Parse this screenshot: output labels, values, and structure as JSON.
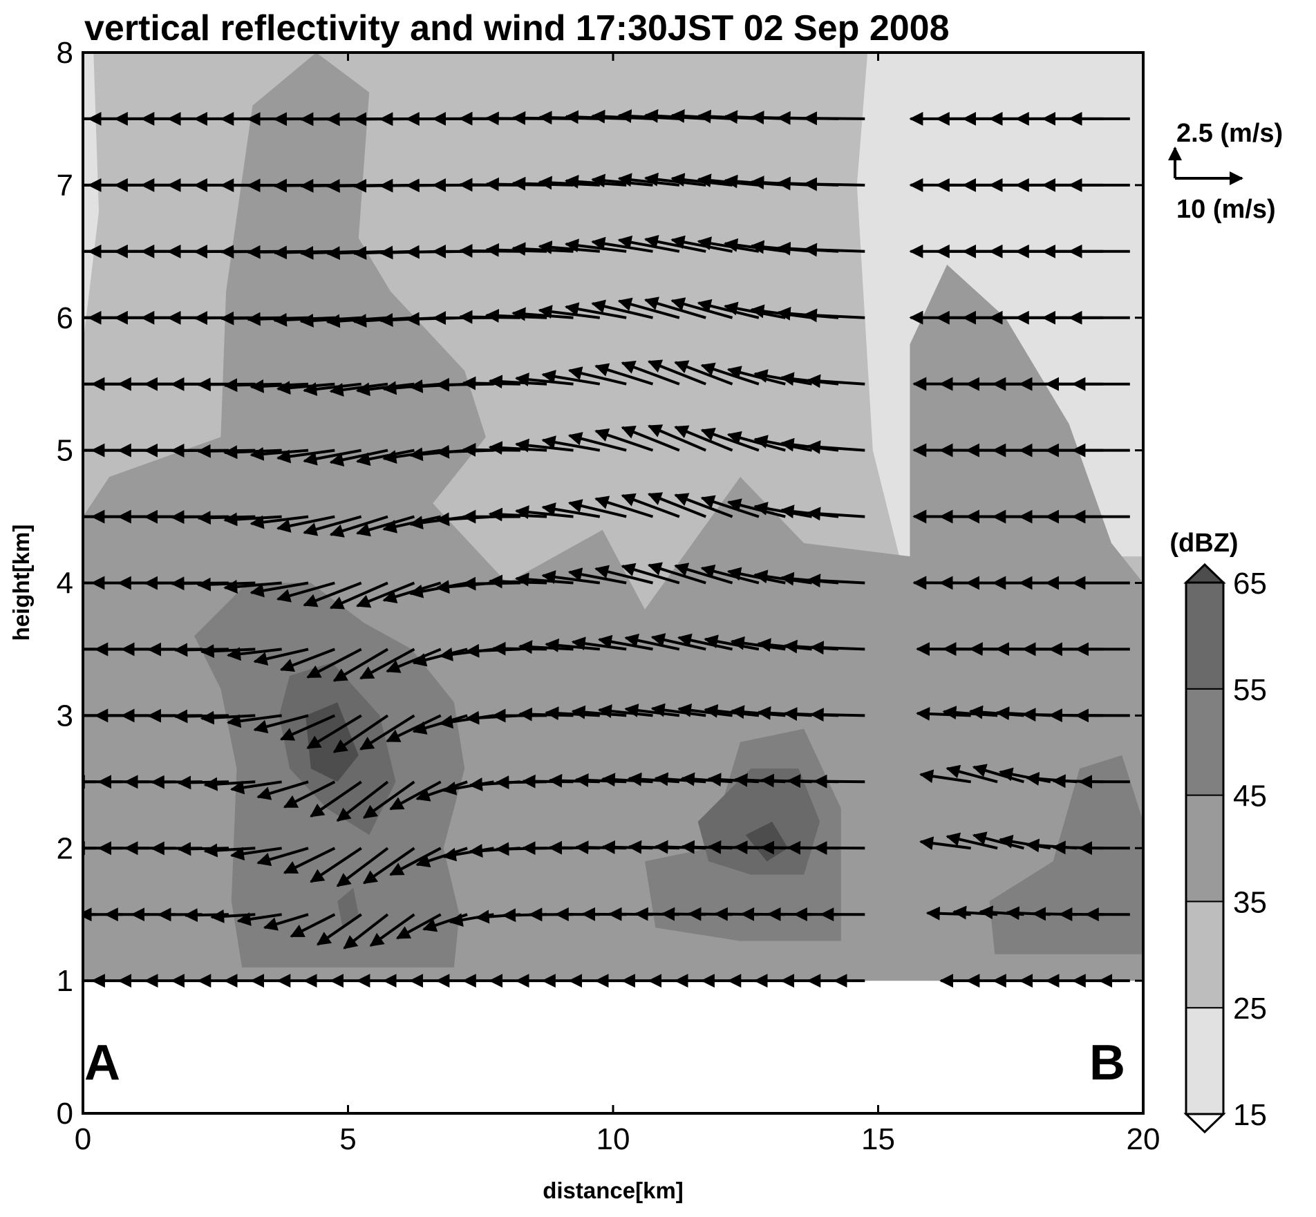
{
  "chart_data": {
    "type": "heatmap",
    "title": "vertical reflectivity and wind   17:30JST 02 Sep 2008",
    "xlabel": "distance[km]",
    "ylabel": "height[km]",
    "xlim": [
      0,
      20
    ],
    "ylim": [
      0,
      8
    ],
    "x_ticks": [
      "0",
      "5",
      "10",
      "15",
      "20"
    ],
    "y_ticks": [
      "0",
      "1",
      "2",
      "3",
      "4",
      "5",
      "6",
      "7",
      "8"
    ],
    "section_start_label": "A",
    "section_end_label": "B",
    "data_bottom_km": 1,
    "colorbar": {
      "title": "(dBZ)",
      "levels": [
        15,
        25,
        35,
        45,
        55,
        65
      ],
      "tick_labels": [
        "15",
        "25",
        "35",
        "45",
        "55",
        "65"
      ],
      "colors": [
        "#e1e1e1",
        "#bdbdbd",
        "#9a9a9a",
        "#808080",
        "#6a6a6a",
        "#4d4d4d"
      ]
    },
    "reference_vectors": {
      "vertical_label": "2.5 (m/s)",
      "horizontal_label": "10 (m/s)"
    },
    "reflectivity_regions": [
      {
        "level_dbz": 15,
        "points": [
          [
            0,
            8
          ],
          [
            20,
            8
          ],
          [
            20,
            1
          ],
          [
            0,
            1
          ]
        ]
      },
      {
        "level_dbz": 25,
        "points": [
          [
            0.2,
            8
          ],
          [
            14.8,
            8
          ],
          [
            14.6,
            7
          ],
          [
            14.9,
            5
          ],
          [
            15.4,
            4.2
          ],
          [
            20,
            4.2
          ],
          [
            20,
            1
          ],
          [
            0,
            1
          ],
          [
            0,
            5.8
          ],
          [
            0.3,
            6.8
          ]
        ]
      },
      {
        "level_dbz": 25,
        "points": [
          [
            9.6,
            7.9
          ],
          [
            14.2,
            7.9
          ],
          [
            14.4,
            7.3
          ],
          [
            12.5,
            6.2
          ],
          [
            10.5,
            6.8
          ]
        ]
      },
      {
        "level_dbz": 35,
        "points": [
          [
            0,
            4.5
          ],
          [
            0.5,
            4.8
          ],
          [
            2.6,
            5.1
          ],
          [
            2.7,
            6.2
          ],
          [
            3.2,
            7.6
          ],
          [
            4.4,
            8
          ],
          [
            5.4,
            7.7
          ],
          [
            5.2,
            6.6
          ],
          [
            5.8,
            6.2
          ],
          [
            7.2,
            5.6
          ],
          [
            7.6,
            5.1
          ],
          [
            6.6,
            4.6
          ],
          [
            8.0,
            4.0
          ],
          [
            9.8,
            4.4
          ],
          [
            10.6,
            3.8
          ],
          [
            12.4,
            4.8
          ],
          [
            13.6,
            4.3
          ],
          [
            15.6,
            4.2
          ],
          [
            15.6,
            5.8
          ],
          [
            16.3,
            6.4
          ],
          [
            17.4,
            6.0
          ],
          [
            18.6,
            5.2
          ],
          [
            19.4,
            4.3
          ],
          [
            20,
            4.0
          ],
          [
            20,
            1
          ],
          [
            0,
            1
          ]
        ]
      },
      {
        "level_dbz": 45,
        "points": [
          [
            2.1,
            3.6
          ],
          [
            3.1,
            4.0
          ],
          [
            4.3,
            4.0
          ],
          [
            5.3,
            3.7
          ],
          [
            6.2,
            3.5
          ],
          [
            7.0,
            3.1
          ],
          [
            7.2,
            2.6
          ],
          [
            6.8,
            2.0
          ],
          [
            7.1,
            1.5
          ],
          [
            7.0,
            1.1
          ],
          [
            3.0,
            1.1
          ],
          [
            2.8,
            1.6
          ],
          [
            2.9,
            2.6
          ],
          [
            2.6,
            3.2
          ]
        ]
      },
      {
        "level_dbz": 45,
        "points": [
          [
            10.6,
            1.9
          ],
          [
            11.8,
            2.0
          ],
          [
            12.4,
            2.8
          ],
          [
            13.6,
            2.9
          ],
          [
            14.3,
            2.3
          ],
          [
            14.3,
            1.3
          ],
          [
            12.4,
            1.3
          ],
          [
            10.8,
            1.4
          ]
        ]
      },
      {
        "level_dbz": 45,
        "points": [
          [
            17.1,
            1.6
          ],
          [
            18.3,
            1.9
          ],
          [
            18.8,
            2.6
          ],
          [
            19.6,
            2.7
          ],
          [
            20,
            2.2
          ],
          [
            20,
            1.2
          ],
          [
            17.2,
            1.2
          ]
        ]
      },
      {
        "level_dbz": 55,
        "points": [
          [
            3.9,
            3.3
          ],
          [
            4.7,
            3.4
          ],
          [
            5.6,
            3.0
          ],
          [
            5.9,
            2.5
          ],
          [
            5.4,
            2.1
          ],
          [
            4.6,
            2.3
          ],
          [
            3.9,
            2.6
          ],
          [
            3.7,
            3.0
          ]
        ]
      },
      {
        "level_dbz": 55,
        "points": [
          [
            11.6,
            2.2
          ],
          [
            12.6,
            2.6
          ],
          [
            13.5,
            2.6
          ],
          [
            13.9,
            2.2
          ],
          [
            13.6,
            1.8
          ],
          [
            12.6,
            1.8
          ],
          [
            11.8,
            1.9
          ]
        ]
      },
      {
        "level_dbz": 55,
        "points": [
          [
            4.8,
            1.6
          ],
          [
            5.1,
            1.7
          ],
          [
            5.2,
            1.5
          ],
          [
            4.9,
            1.4
          ]
        ]
      },
      {
        "level_dbz": 65,
        "points": [
          [
            4.2,
            3.0
          ],
          [
            4.8,
            3.1
          ],
          [
            5.2,
            2.7
          ],
          [
            4.8,
            2.5
          ],
          [
            4.3,
            2.6
          ]
        ]
      },
      {
        "level_dbz": 65,
        "points": [
          [
            12.5,
            2.1
          ],
          [
            13.0,
            2.2
          ],
          [
            13.3,
            2.0
          ],
          [
            12.9,
            1.9
          ]
        ]
      }
    ],
    "wind_field": {
      "description": "storm-relative wind vectors along section A-B",
      "x_km": [
        0.25,
        0.75,
        1.25,
        1.75,
        2.25,
        2.75,
        3.25,
        3.75,
        4.25,
        4.75,
        5.25,
        5.75,
        6.25,
        6.75,
        7.25,
        7.75,
        8.25,
        8.75,
        9.25,
        9.75,
        10.25,
        10.75,
        11.25,
        11.75,
        12.25,
        12.75,
        13.25,
        13.75,
        14.25,
        14.75,
        16.75,
        17.25,
        17.75,
        18.25,
        18.75,
        19.25,
        19.75
      ],
      "z_km": [
        1.0,
        1.5,
        2.0,
        2.5,
        3.0,
        3.5,
        4.0,
        4.5,
        5.0,
        5.5,
        6.0,
        6.5,
        7.0,
        7.5
      ],
      "gap_x_km": [
        15.0,
        16.5
      ],
      "u_profile_ms": [
        {
          "z": 1.0,
          "u": -4.5
        },
        {
          "z": 1.5,
          "u": -6.5
        },
        {
          "z": 2.0,
          "u": -7.5
        },
        {
          "z": 2.5,
          "u": -7.5
        },
        {
          "z": 3.0,
          "u": -8.0
        },
        {
          "z": 3.5,
          "u": -8.0
        },
        {
          "z": 4.0,
          "u": -8.5
        },
        {
          "z": 4.5,
          "u": -8.5
        },
        {
          "z": 5.0,
          "u": -8.5
        },
        {
          "z": 5.5,
          "u": -8.5
        },
        {
          "z": 6.0,
          "u": -9.0
        },
        {
          "z": 6.5,
          "u": -9.0
        },
        {
          "z": 7.0,
          "u": -9.0
        },
        {
          "z": 7.5,
          "u": -9.0
        }
      ],
      "downdraft": {
        "center_x_km": 5.8,
        "center_z_km": 2.4,
        "peak_w_ms": -3.2,
        "radius_x_km": 1.6,
        "radius_z_km": 2.4
      },
      "updrafts": [
        {
          "center_x_km": 11.8,
          "center_z_km": 5.0,
          "peak_w_ms": 2.0,
          "radius_x_km": 2.2,
          "radius_z_km": 1.8
        },
        {
          "center_x_km": 17.6,
          "center_z_km": 2.3,
          "peak_w_ms": 1.4,
          "radius_x_km": 1.0,
          "radius_z_km": 0.6
        }
      ]
    }
  }
}
